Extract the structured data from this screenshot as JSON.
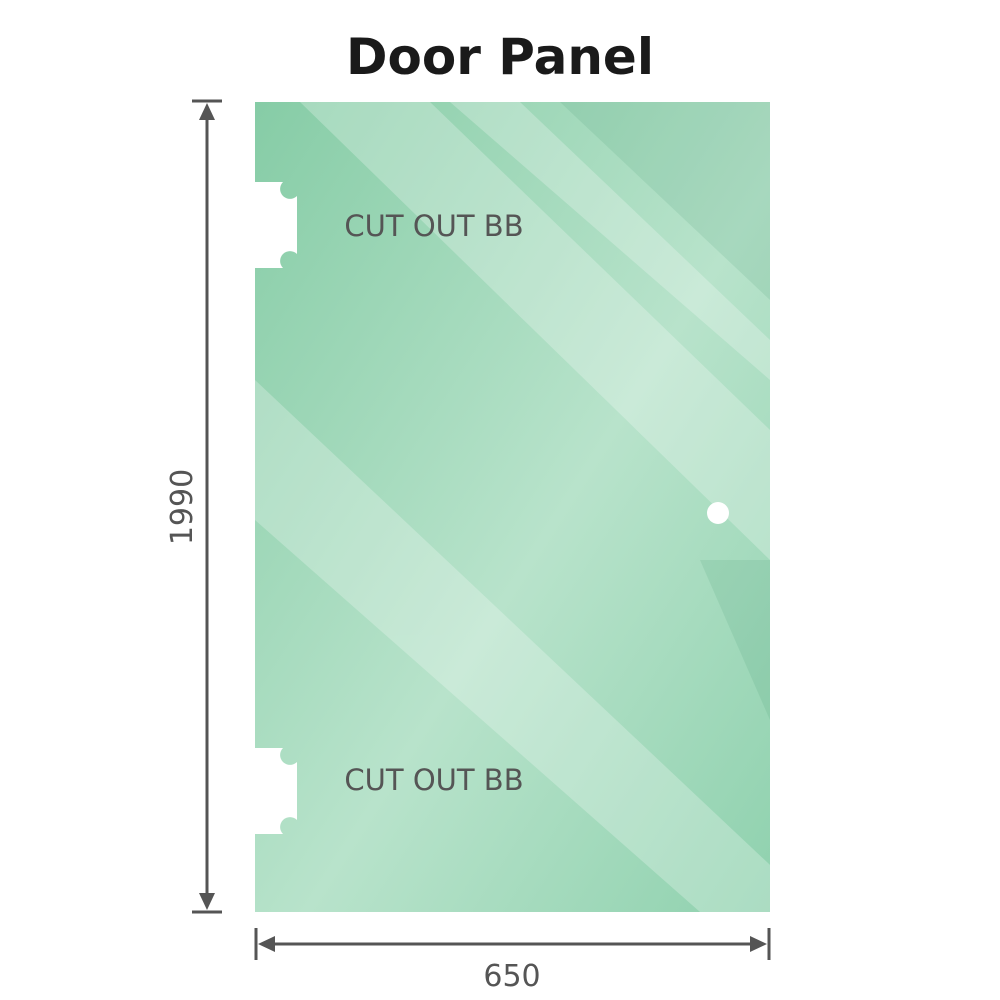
{
  "title": "Door Panel",
  "dimensions": {
    "height": "1990",
    "width": "650"
  },
  "cutouts": [
    {
      "label": "CUT OUT BB"
    },
    {
      "label": "CUT OUT BB"
    }
  ],
  "colors": {
    "glass": "#8fd1ae",
    "glass_light": "#bfe6d2",
    "dimension": "#555555"
  }
}
